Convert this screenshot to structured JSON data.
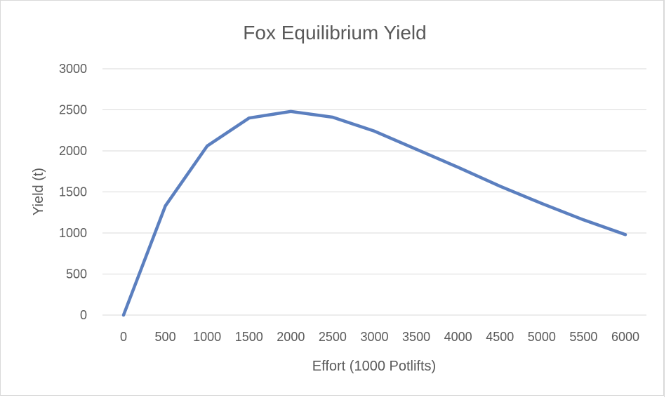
{
  "chart_data": {
    "type": "line",
    "title": "Fox Equilibrium Yield",
    "xlabel": "Effort (1000 Potlifts)",
    "ylabel": "Yield (t)",
    "categories": [
      "0",
      "500",
      "1000",
      "1500",
      "2000",
      "2500",
      "3000",
      "3500",
      "4000",
      "4500",
      "5000",
      "5500",
      "6000"
    ],
    "x": [
      0,
      500,
      1000,
      1500,
      2000,
      2500,
      3000,
      3500,
      4000,
      4500,
      5000,
      5500,
      6000
    ],
    "series": [
      {
        "values": [
          0,
          1330,
          2060,
          2400,
          2480,
          2410,
          2240,
          2020,
          1800,
          1570,
          1360,
          1160,
          980
        ]
      }
    ],
    "yticks": [
      "0",
      "500",
      "1000",
      "1500",
      "2000",
      "2500",
      "3000"
    ],
    "ylim": [
      0,
      3000
    ],
    "grid": true,
    "colors": {
      "line": "#5b7fbf",
      "grid": "#d9d9d9",
      "text": "#595959"
    }
  }
}
